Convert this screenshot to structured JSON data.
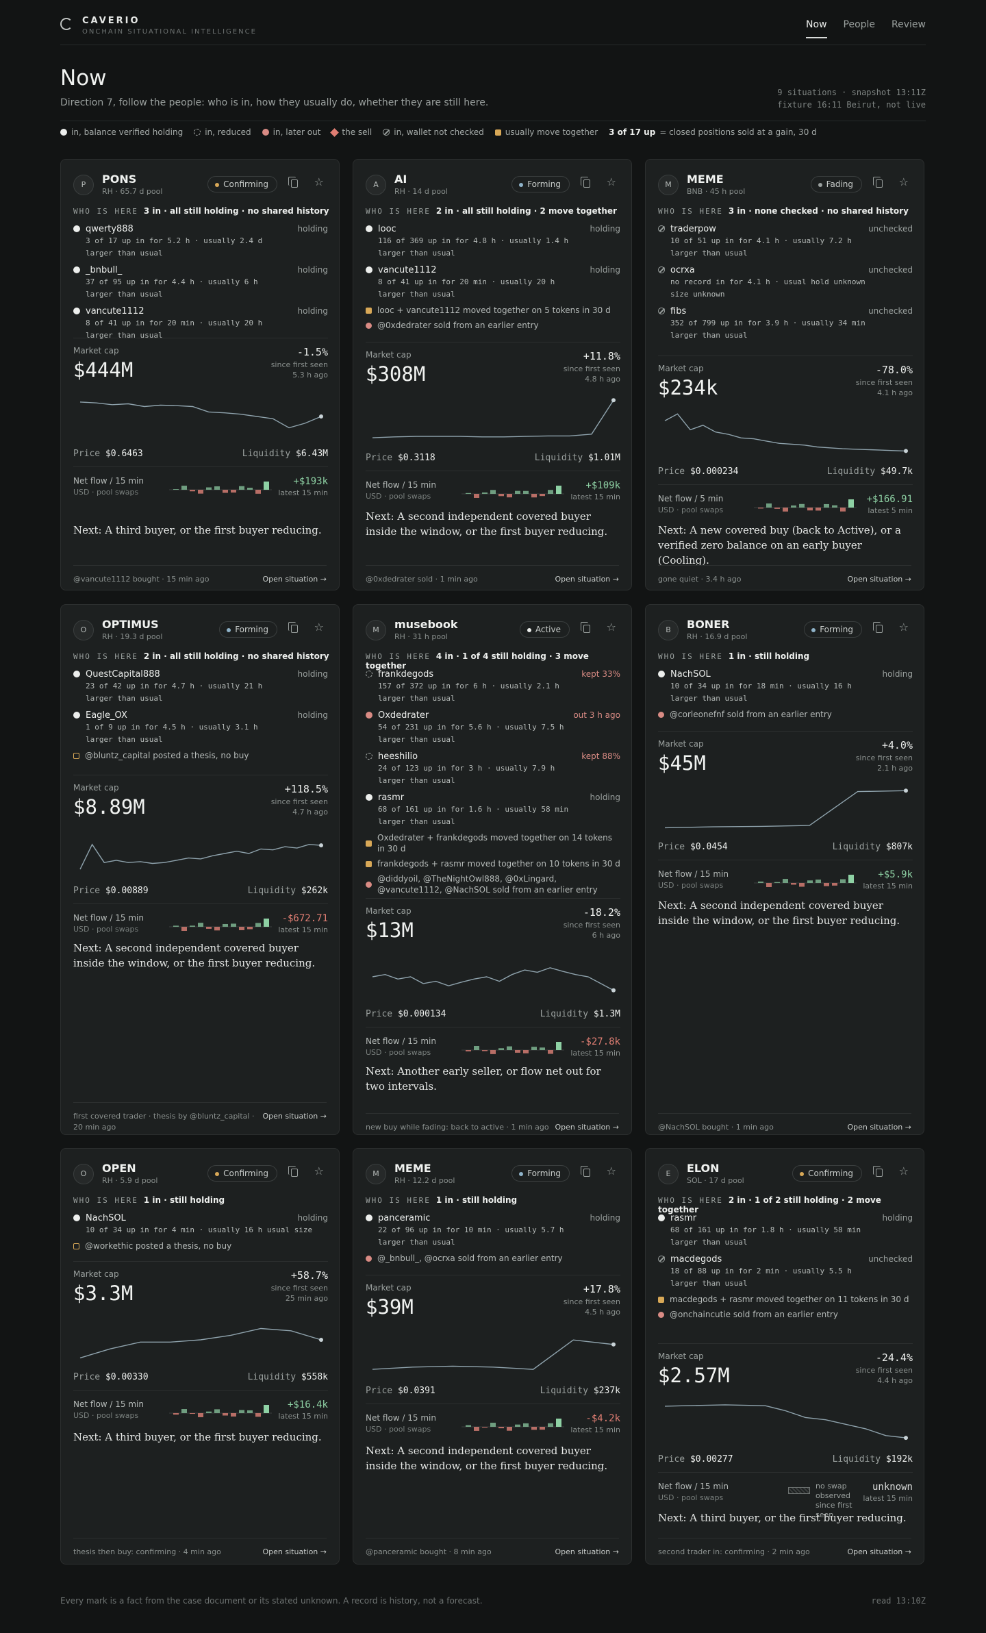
{
  "brand": {
    "name": "CAVERIO",
    "tagline": "ONCHAIN SITUATIONAL INTELLIGENCE"
  },
  "nav": [
    "Now",
    "People",
    "Review"
  ],
  "page": {
    "title": "Now",
    "subtitle": "Direction 7, follow the people: who is in, how they usually do, whether they are still here.",
    "snap1": "9 situations · snapshot 13:11Z",
    "snap2": "fixture 16:11 Beirut, not live"
  },
  "legend": {
    "verified": "in, balance verified holding",
    "reduced": "in, reduced",
    "later_out": "in, later out",
    "sell": "the sell",
    "not_checked": "in, wallet not checked",
    "together": "usually move together",
    "ratio": "3 of 17 up",
    "ratio_note": "= closed positions sold at a gain, 30 d"
  },
  "labels": {
    "who": "WHO IS HERE",
    "market_cap": "Market cap",
    "price": "Price",
    "liquidity": "Liquidity",
    "open": "Open situation →"
  },
  "cards": [
    {
      "initial": "P",
      "name": "PONS",
      "pool": "RH · 65.7 d pool",
      "state": "Confirming",
      "who": "3 in · all still holding · no shared history",
      "people": [
        {
          "name": "qwerty888",
          "status": "holding",
          "dot": "solid",
          "stat": "3 of 17 up  in for 5.2 h · usually 2.4 d",
          "note": "larger than usual"
        },
        {
          "name": "_bnbull_",
          "status": "holding",
          "dot": "solid",
          "stat": "37 of 95 up  in for 4.4 h · usually 6 h",
          "note": "larger than usual"
        },
        {
          "name": "vancute1112",
          "status": "holding",
          "dot": "solid",
          "stat": "8 of 41 up  in for 20 min · usually 20 h",
          "note": "larger than usual"
        }
      ],
      "notes": [],
      "mcap": "$444M",
      "pct": "-1.5%",
      "since": "since first seen",
      "ago": "5.3 h ago",
      "price": "$0.6463",
      "liq": "$6.43M",
      "flow_l": "Net flow / 15 min",
      "flow_v": "+$193k",
      "flow_t": "latest 15 min",
      "next": "Next: A third buyer, or the first buyer reducing.",
      "foot": "@vancute1112 bought · 15 min ago",
      "spark": [
        0.82,
        0.8,
        0.76,
        0.78,
        0.72,
        0.75,
        0.74,
        0.72,
        0.6,
        0.58,
        0.55,
        0.5,
        0.45,
        0.25,
        0.35,
        0.5
      ]
    },
    {
      "initial": "A",
      "name": "AI",
      "pool": "RH · 14 d pool",
      "state": "Forming",
      "who": "2 in · all still holding · 2 move together",
      "people": [
        {
          "name": "looc",
          "status": "holding",
          "dot": "solid",
          "stat": "116 of 369 up  in for 4.8 h · usually 1.4 h",
          "note": "larger than usual"
        },
        {
          "name": "vancute1112",
          "status": "holding",
          "dot": "solid",
          "stat": "8 of 41 up  in for 20 min · usually 20 h",
          "note": "larger than usual"
        }
      ],
      "notes": [
        {
          "kind": "sq",
          "text": "looc + vancute1112 moved together on 5 tokens in 30 d"
        },
        {
          "kind": "red",
          "text": "@0xdedrater sold from an earlier entry"
        }
      ],
      "mcap": "$308M",
      "pct": "+11.8%",
      "since": "since first seen",
      "ago": "4.8 h ago",
      "price": "$0.3118",
      "liq": "$1.01M",
      "flow_l": "Net flow / 15 min",
      "flow_v": "+$109k",
      "flow_t": "latest 15 min",
      "next": "Next: A second independent covered buyer inside the window, or the first buyer reducing.",
      "foot": "@0xdedrater sold · 1 min ago",
      "spark": [
        0.12,
        0.14,
        0.15,
        0.15,
        0.15,
        0.14,
        0.14,
        0.15,
        0.16,
        0.16,
        0.2,
        0.95
      ]
    },
    {
      "initial": "M",
      "name": "MEME",
      "pool": "BNB · 45 h pool",
      "state": "Fading",
      "who": "3 in · none checked · no shared history",
      "people": [
        {
          "name": "traderpow",
          "status": "unchecked",
          "dot": "slash",
          "stat": "10 of 51 up  in for 4.1 h · usually 7.2 h",
          "note": "larger than usual"
        },
        {
          "name": "ocrxa",
          "status": "unchecked",
          "dot": "slash",
          "stat": "no record  in for 4.1 h · usual hold unknown",
          "note": "size unknown"
        },
        {
          "name": "fibs",
          "status": "unchecked",
          "dot": "slash",
          "stat": "352 of 799 up  in for 3.9 h · usually 34 min",
          "note": "larger than usual"
        }
      ],
      "notes": [],
      "mcap": "$234k",
      "pct": "-78.0%",
      "since": "since first seen",
      "ago": "4.1 h ago",
      "price": "$0.000234",
      "liq": "$49.7k",
      "flow_l": "Net flow / 5 min",
      "flow_v": "+$166.91",
      "flow_t": "latest 5 min",
      "next": "Next: A new covered buy (back to Active), or a verified zero balance on an early buyer (Cooling).",
      "foot": "gone quiet · 3.4 h ago",
      "spark": [
        0.8,
        0.95,
        0.6,
        0.7,
        0.55,
        0.5,
        0.42,
        0.4,
        0.35,
        0.3,
        0.28,
        0.26,
        0.22,
        0.2,
        0.18,
        0.17,
        0.16,
        0.15,
        0.14,
        0.13
      ]
    },
    {
      "initial": "O",
      "name": "OPTIMUS",
      "pool": "RH · 19.3 d pool",
      "state": "Forming",
      "who": "2 in · all still holding · no shared history",
      "people": [
        {
          "name": "QuestCapital888",
          "status": "holding",
          "dot": "solid",
          "stat": "23 of 42 up  in for 4.7 h · usually 21 h",
          "note": "larger than usual"
        },
        {
          "name": "Eagle_OX",
          "status": "holding",
          "dot": "solid",
          "stat": "1 of 9 up  in for 4.5 h · usually 3.1 h",
          "note": "larger than usual"
        }
      ],
      "notes": [
        {
          "kind": "sqo",
          "text": "@bluntz_capital posted a thesis, no buy"
        }
      ],
      "mcap": "$8.89M",
      "pct": "+118.5%",
      "since": "since first seen",
      "ago": "4.7 h ago",
      "price": "$0.00889",
      "liq": "$262k",
      "flow_l": "Net flow / 15 min",
      "flow_v": "-$672.71",
      "flow_t": "latest 15 min",
      "next": "Next: A second independent covered buyer inside the window, or the first buyer reducing.",
      "foot": "first covered trader · thesis by @bluntz_capital · 20 min ago",
      "spark": [
        0.15,
        0.7,
        0.3,
        0.35,
        0.3,
        0.32,
        0.28,
        0.3,
        0.35,
        0.4,
        0.38,
        0.45,
        0.5,
        0.55,
        0.5,
        0.6,
        0.58,
        0.65,
        0.62,
        0.7,
        0.68
      ]
    },
    {
      "initial": "M",
      "name": "musebook",
      "pool": "RH · 31 h pool",
      "state": "Active",
      "who": "4 in · 1 of 4 still holding · 3 move together",
      "people": [
        {
          "name": "frankdegods",
          "status": "kept 33%",
          "dot": "dash",
          "stat": "157 of 372 up  in for 6 h · usually 2.1 h",
          "note": "larger than usual"
        },
        {
          "name": "Oxdedrater",
          "status": "out 3 h ago",
          "dot": "red",
          "stat": "54 of 231 up  in for 5.6 h · usually 7.5 h",
          "note": "larger than usual"
        },
        {
          "name": "heeshilio",
          "status": "kept 88%",
          "dot": "dash",
          "stat": "24 of 123 up  in for 3 h · usually 7.9 h",
          "note": "larger than usual"
        },
        {
          "name": "rasmr",
          "status": "holding",
          "dot": "solid",
          "stat": "68 of 161 up  in for 1.6 h · usually 58 min",
          "note": "larger than usual"
        }
      ],
      "notes": [
        {
          "kind": "sq",
          "text": "Oxdedrater + frankdegods moved together on 14 tokens in 30 d"
        },
        {
          "kind": "sq",
          "text": "frankdegods + rasmr moved together on 10 tokens in 30 d"
        },
        {
          "kind": "red",
          "text": "@diddyoil, @TheNightOwl888, @0xLingard, @vancute1112, @NachSOL sold from an earlier entry"
        }
      ],
      "mcap": "$13M",
      "pct": "-18.2%",
      "since": "since first seen",
      "ago": "6 h ago",
      "price": "$0.000134",
      "liq": "$1.3M",
      "flow_l": "Net flow / 15 min",
      "flow_v": "-$27.8k",
      "flow_t": "latest 15 min",
      "next": "Next: Another early seller, or flow net out for two intervals.",
      "foot": "new buy while fading: back to active · 1 min ago",
      "spark": [
        0.5,
        0.55,
        0.45,
        0.5,
        0.35,
        0.4,
        0.3,
        0.38,
        0.45,
        0.5,
        0.4,
        0.55,
        0.65,
        0.6,
        0.7,
        0.62,
        0.55,
        0.5,
        0.35,
        0.2
      ]
    },
    {
      "initial": "B",
      "name": "BONER",
      "pool": "RH · 16.9 d pool",
      "state": "Forming",
      "who": "1 in · still holding",
      "people": [
        {
          "name": "NachSOL",
          "status": "holding",
          "dot": "solid",
          "stat": "10 of 34 up  in for 18 min · usually 16 h",
          "note": "larger than usual"
        }
      ],
      "notes": [
        {
          "kind": "red",
          "text": "@corleonefnf sold from an earlier entry"
        }
      ],
      "mcap": "$45M",
      "pct": "+4.0%",
      "since": "since first seen",
      "ago": "2.1 h ago",
      "price": "$0.0454",
      "liq": "$807k",
      "flow_l": "Net flow / 15 min",
      "flow_v": "+$5.9k",
      "flow_t": "latest 15 min",
      "next": "Next: A second independent covered buyer inside the window, or the first buyer reducing.",
      "foot": "@NachSOL bought · 1 min ago",
      "spark": [
        0.1,
        0.12,
        0.13,
        0.15,
        0.9,
        0.92
      ]
    },
    {
      "initial": "O",
      "name": "OPEN",
      "pool": "RH · 5.9 d pool",
      "state": "Confirming",
      "who": "1 in · still holding",
      "people": [
        {
          "name": "NachSOL",
          "status": "holding",
          "dot": "solid",
          "stat": "10 of 34 up  in for 4 min · usually 16 h  usual size",
          "note": ""
        }
      ],
      "notes": [
        {
          "kind": "sqo",
          "text": "@workethic posted a thesis, no buy"
        }
      ],
      "mcap": "$3.3M",
      "pct": "+58.7%",
      "since": "since first seen",
      "ago": "25 min ago",
      "price": "$0.00330",
      "liq": "$558k",
      "flow_l": "Net flow / 15 min",
      "flow_v": "+$16.4k",
      "flow_t": "latest 15 min",
      "next": "Next: A third buyer, or the first buyer reducing.",
      "foot": "thesis then buy: confirming · 4 min ago",
      "spark": [
        0.1,
        0.3,
        0.45,
        0.45,
        0.5,
        0.6,
        0.75,
        0.7,
        0.5
      ]
    },
    {
      "initial": "M",
      "name": "MEME",
      "pool": "RH · 12.2 d pool",
      "state": "Forming",
      "who": "1 in · still holding",
      "people": [
        {
          "name": "panceramic",
          "status": "holding",
          "dot": "solid",
          "stat": "22 of 96 up  in for 10 min · usually 5.7 h",
          "note": "larger than usual"
        }
      ],
      "notes": [
        {
          "kind": "red",
          "text": "@_bnbull_, @ocrxa sold from an earlier entry"
        }
      ],
      "mcap": "$39M",
      "pct": "+17.8%",
      "since": "since first seen",
      "ago": "4.5 h ago",
      "price": "$0.0391",
      "liq": "$237k",
      "flow_l": "Net flow / 15 min",
      "flow_v": "-$4.2k",
      "flow_t": "latest 15 min",
      "next": "Next: A second independent covered buyer inside the window, or the first buyer reducing.",
      "foot": "@panceramic bought · 8 min ago",
      "spark": [
        0.15,
        0.2,
        0.22,
        0.2,
        0.15,
        0.8,
        0.7
      ]
    },
    {
      "initial": "E",
      "name": "ELON",
      "pool": "SOL · 17 d pool",
      "state": "Confirming",
      "who": "2 in · 1 of 2 still holding · 2 move together",
      "people": [
        {
          "name": "rasmr",
          "status": "holding",
          "dot": "solid",
          "stat": "68 of 161 up  in for 1.8 h · usually 58 min",
          "note": "larger than usual"
        },
        {
          "name": "macdegods",
          "status": "unchecked",
          "dot": "slash",
          "stat": "18 of 88 up  in for 2 min · usually 5.5 h",
          "note": "larger than usual"
        }
      ],
      "notes": [
        {
          "kind": "sq",
          "text": "macdegods + rasmr moved together on 11 tokens in 30 d"
        },
        {
          "kind": "red",
          "text": "@onchaincutie sold from an earlier entry"
        }
      ],
      "mcap": "$2.57M",
      "pct": "-24.4%",
      "since": "since first seen",
      "ago": "4.4 h ago",
      "price": "$0.00277",
      "liq": "$192k",
      "flow_l": "Net flow / 15 min",
      "flow_v": "unknown",
      "flow_t": "latest 15 min",
      "flow_note": "no swap observed since first seen",
      "next": "Next: A third buyer, or the first buyer reducing.",
      "foot": "second trader in: confirming · 2 min ago",
      "spark": [
        0.85,
        0.86,
        0.87,
        0.88,
        0.87,
        0.86,
        0.75,
        0.6,
        0.55,
        0.45,
        0.35,
        0.2,
        0.15
      ]
    }
  ],
  "footer": {
    "left": "Every mark is a fact from the case document or its stated unknown. A record is history, not a forecast.",
    "right": "read 13:10Z"
  }
}
